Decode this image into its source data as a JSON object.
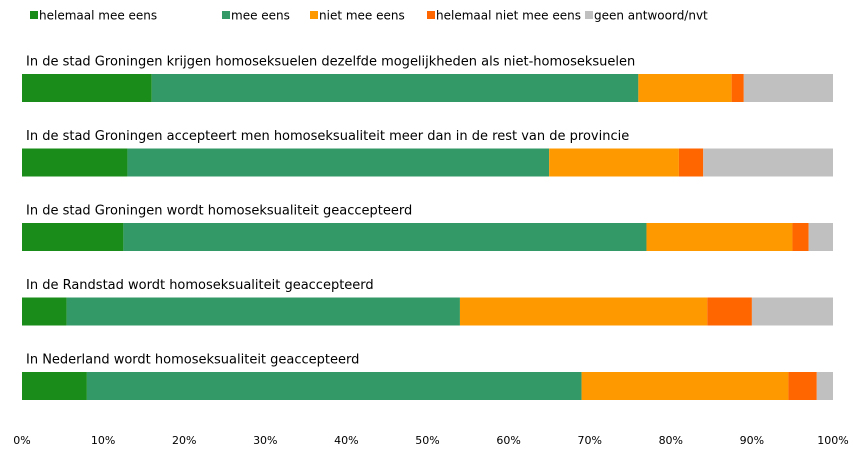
{
  "chart_data": {
    "type": "stacked-bar-horizontal",
    "categories": [
      "In de stad Groningen krijgen homoseksuelen dezelfde mogelijkheden als niet-homoseksuelen",
      "In de stad Groningen accepteert men homoseksualiteit meer dan in de rest van de provincie",
      "In de stad Groningen wordt homoseksualiteit geaccepteerd",
      "In de Randstad wordt homoseksualiteit geaccepteerd",
      "In Nederland wordt homoseksualiteit geaccepteerd"
    ],
    "series": [
      {
        "name": "helemaal mee eens",
        "color": "#1a8c1a",
        "values": [
          16,
          13,
          12.5,
          5.5,
          8
        ]
      },
      {
        "name": "mee eens",
        "color": "#339966",
        "values": [
          60,
          52,
          64.5,
          48.5,
          61
        ]
      },
      {
        "name": "niet mee eens",
        "color": "#ff9900",
        "values": [
          11.5,
          16,
          18,
          30.5,
          25.5
        ]
      },
      {
        "name": "helemaal niet mee eens",
        "color": "#ff6600",
        "values": [
          1.5,
          3,
          2,
          5.5,
          3.5
        ]
      },
      {
        "name": "geen antwoord/nvt",
        "color": "#c0c0c0",
        "values": [
          11,
          16,
          3,
          10,
          2
        ]
      }
    ],
    "xlim": [
      0,
      100
    ],
    "xticks": [
      {
        "value": 0,
        "label": "0%"
      },
      {
        "value": 10,
        "label": "10%"
      },
      {
        "value": 20,
        "label": "20%"
      },
      {
        "value": 30,
        "label": "30%"
      },
      {
        "value": 40,
        "label": "40%"
      },
      {
        "value": 50,
        "label": "50%"
      },
      {
        "value": 60,
        "label": "60%"
      },
      {
        "value": 70,
        "label": "70%"
      },
      {
        "value": 80,
        "label": "80%"
      },
      {
        "value": 90,
        "label": "90%"
      },
      {
        "value": 100,
        "label": "100%"
      }
    ],
    "legend": "top"
  }
}
